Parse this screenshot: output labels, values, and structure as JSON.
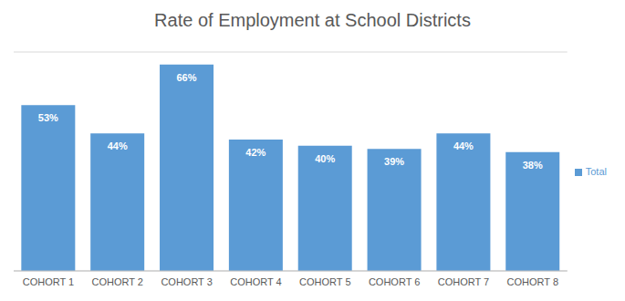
{
  "chart_data": {
    "type": "bar",
    "title": "Rate of Employment at School Districts",
    "categories": [
      "COHORT 1",
      "COHORT 2",
      "COHORT 3",
      "COHORT 4",
      "COHORT 5",
      "COHORT 6",
      "COHORT 7",
      "COHORT 8"
    ],
    "series": [
      {
        "name": "Total",
        "color": "#5b9bd5",
        "values": [
          53,
          44,
          66,
          42,
          40,
          39,
          44,
          38
        ],
        "value_labels": [
          "53%",
          "44%",
          "66%",
          "42%",
          "40%",
          "39%",
          "44%",
          "38%"
        ]
      }
    ],
    "ylim": [
      0,
      70
    ],
    "yticks": [
      0,
      10,
      20,
      30,
      40,
      50,
      60,
      70
    ],
    "grid": true,
    "legend": "right",
    "data_labels": true,
    "tick_labels": "x"
  }
}
